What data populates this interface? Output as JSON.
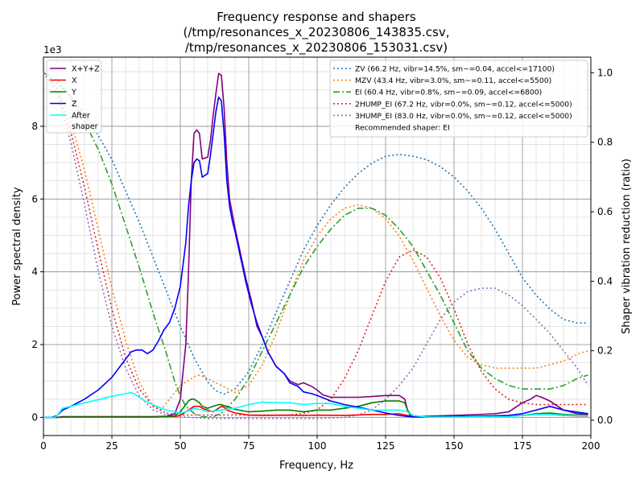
{
  "chart_data": {
    "type": "line",
    "title_lines": [
      "Frequency response and shapers",
      "(/tmp/resonances_x_20230806_143835.csv,",
      "/tmp/resonances_x_20230806_153031.csv)"
    ],
    "xlabel": "Frequency, Hz",
    "ylabel": "Power spectral density",
    "ylabel_right": "Shaper vibration reduction (ratio)",
    "y_offset_label": "1e3",
    "xlim": [
      0,
      200
    ],
    "ylim": [
      -0.5,
      9.9
    ],
    "ylim_right": [
      -0.044,
      1.045
    ],
    "x_ticks": [
      0,
      25,
      50,
      75,
      100,
      125,
      150,
      175,
      200
    ],
    "y_ticks": [
      0,
      2,
      4,
      6,
      8
    ],
    "y_ticks_right": [
      0.0,
      0.2,
      0.4,
      0.6,
      0.8,
      1.0
    ],
    "x_tick_labels": [
      "0",
      "25",
      "50",
      "75",
      "100",
      "125",
      "150",
      "175",
      "200"
    ],
    "y_tick_labels": [
      "0",
      "2",
      "4",
      "6",
      "8"
    ],
    "y_tick_labels_right": [
      "0.0",
      "0.2",
      "0.4",
      "0.6",
      "0.8",
      "1.0"
    ],
    "grid": true,
    "legend_left_placement": "top-left",
    "legend_right_placement": "top-right",
    "psd_series": [
      {
        "name": "X+Y+Z",
        "color": "#800080",
        "x": [
          0,
          5,
          7,
          10,
          20,
          30,
          40,
          45,
          48,
          50,
          52,
          53,
          54,
          55,
          56,
          57,
          58,
          60,
          61,
          62,
          63,
          64,
          65,
          66,
          67,
          68,
          69,
          70,
          72,
          74,
          76,
          78,
          80,
          82,
          85,
          88,
          90,
          93,
          95,
          98,
          100,
          102,
          105,
          110,
          115,
          120,
          125,
          130,
          132,
          133,
          134,
          135,
          140,
          150,
          160,
          165,
          170,
          172,
          175,
          178,
          180,
          182,
          185,
          190,
          195,
          199
        ],
        "y": [
          0,
          0,
          0.02,
          0.02,
          0.02,
          0.02,
          0.02,
          0.03,
          0.1,
          0.5,
          2.0,
          4.0,
          6.5,
          7.8,
          7.9,
          7.8,
          7.1,
          7.15,
          7.6,
          8.3,
          8.9,
          9.45,
          9.4,
          8.5,
          7.0,
          6.0,
          5.6,
          5.2,
          4.5,
          3.8,
          3.2,
          2.5,
          2.2,
          1.8,
          1.4,
          1.2,
          1.0,
          0.9,
          0.95,
          0.85,
          0.75,
          0.62,
          0.55,
          0.55,
          0.55,
          0.57,
          0.6,
          0.6,
          0.5,
          0.2,
          0.05,
          0.02,
          0.03,
          0.05,
          0.08,
          0.1,
          0.15,
          0.25,
          0.4,
          0.5,
          0.6,
          0.55,
          0.45,
          0.2,
          0.1,
          0.08
        ]
      },
      {
        "name": "X",
        "color": "#ff0000",
        "x": [
          0,
          5,
          10,
          20,
          30,
          40,
          45,
          48,
          50,
          52,
          54,
          55,
          56,
          57,
          58,
          60,
          62,
          64,
          65,
          66,
          67,
          70,
          75,
          80,
          90,
          95,
          100,
          110,
          120,
          125,
          130,
          133,
          135,
          140,
          150,
          170,
          175,
          180,
          185,
          190,
          199
        ],
        "y": [
          0,
          0,
          0.01,
          0.01,
          0.01,
          0.01,
          0.02,
          0.02,
          0.05,
          0.15,
          0.25,
          0.3,
          0.3,
          0.3,
          0.25,
          0.2,
          0.15,
          0.25,
          0.3,
          0.28,
          0.2,
          0.12,
          0.06,
          0.05,
          0.06,
          0.05,
          0.06,
          0.05,
          0.08,
          0.08,
          0.1,
          0.05,
          0.02,
          0.02,
          0.02,
          0.03,
          0.05,
          0.08,
          0.08,
          0.05,
          0.03
        ]
      },
      {
        "name": "Y",
        "color": "#008000",
        "x": [
          0,
          5,
          10,
          20,
          30,
          40,
          45,
          48,
          50,
          52,
          53,
          54,
          55,
          56,
          57,
          58,
          60,
          62,
          64,
          65,
          66,
          67,
          70,
          75,
          80,
          85,
          90,
          95,
          100,
          105,
          110,
          115,
          120,
          125,
          130,
          132,
          133,
          134,
          135,
          140,
          150,
          170,
          175,
          180,
          185,
          190,
          199
        ],
        "y": [
          0,
          0,
          0.01,
          0.01,
          0.01,
          0.01,
          0.02,
          0.04,
          0.15,
          0.35,
          0.45,
          0.5,
          0.5,
          0.45,
          0.4,
          0.3,
          0.25,
          0.3,
          0.35,
          0.35,
          0.32,
          0.3,
          0.22,
          0.15,
          0.17,
          0.2,
          0.2,
          0.15,
          0.2,
          0.2,
          0.25,
          0.3,
          0.4,
          0.45,
          0.45,
          0.4,
          0.2,
          0.1,
          0.03,
          0.02,
          0.02,
          0.03,
          0.05,
          0.1,
          0.12,
          0.08,
          0.05
        ]
      },
      {
        "name": "Z",
        "color": "#0000ff",
        "x": [
          0,
          3,
          5,
          7,
          10,
          15,
          20,
          25,
          28,
          30,
          32,
          34,
          36,
          38,
          40,
          42,
          44,
          46,
          48,
          50,
          52,
          53,
          54,
          55,
          56,
          57,
          58,
          60,
          61,
          62,
          63,
          64,
          65,
          66,
          67,
          68,
          69,
          70,
          72,
          74,
          76,
          78,
          80,
          82,
          85,
          88,
          90,
          93,
          95,
          98,
          100,
          105,
          110,
          115,
          120,
          125,
          130,
          135,
          140,
          150,
          160,
          170,
          175,
          180,
          185,
          190,
          199
        ],
        "y": [
          0,
          0,
          0.05,
          0.2,
          0.3,
          0.5,
          0.75,
          1.1,
          1.4,
          1.6,
          1.8,
          1.85,
          1.85,
          1.75,
          1.85,
          2.1,
          2.4,
          2.6,
          3.0,
          3.6,
          4.8,
          5.8,
          6.5,
          7.0,
          7.1,
          7.05,
          6.6,
          6.7,
          7.2,
          7.8,
          8.4,
          8.8,
          8.7,
          7.8,
          6.5,
          5.8,
          5.4,
          5.1,
          4.4,
          3.7,
          3.1,
          2.6,
          2.2,
          1.8,
          1.4,
          1.2,
          0.95,
          0.85,
          0.7,
          0.65,
          0.6,
          0.45,
          0.35,
          0.28,
          0.2,
          0.12,
          0.05,
          0.01,
          0.01,
          0.02,
          0.03,
          0.05,
          0.1,
          0.2,
          0.3,
          0.2,
          0.1
        ]
      },
      {
        "name": "After\nshaper",
        "color": "#00ffff",
        "x": [
          0,
          4,
          5,
          6,
          7,
          10,
          15,
          20,
          25,
          30,
          32,
          33,
          35,
          37,
          40,
          42,
          45,
          48,
          50,
          52,
          55,
          58,
          60,
          65,
          70,
          75,
          80,
          85,
          90,
          95,
          100,
          105,
          110,
          115,
          120,
          125,
          130,
          133,
          135,
          140,
          150,
          170,
          175,
          180,
          185,
          190,
          199
        ],
        "y": [
          0,
          0,
          0.05,
          0.15,
          0.25,
          0.3,
          0.4,
          0.48,
          0.58,
          0.65,
          0.68,
          0.65,
          0.55,
          0.45,
          0.35,
          0.28,
          0.2,
          0.15,
          0.12,
          0.15,
          0.25,
          0.2,
          0.15,
          0.2,
          0.25,
          0.35,
          0.42,
          0.4,
          0.4,
          0.35,
          0.38,
          0.38,
          0.3,
          0.25,
          0.2,
          0.2,
          0.2,
          0.15,
          0.05,
          0.01,
          0.01,
          0.02,
          0.05,
          0.08,
          0.08,
          0.06,
          0.04
        ]
      }
    ],
    "shaper_series": [
      {
        "name": "ZV (66.2 Hz, vibr=14.5%, sm~=0.04, accel<=17100)",
        "color": "#1f77b4",
        "dash": "2,3",
        "x": [
          0,
          5,
          10,
          15,
          20,
          25,
          30,
          35,
          40,
          45,
          50,
          55,
          60,
          63,
          66,
          70,
          75,
          80,
          85,
          90,
          95,
          100,
          105,
          110,
          115,
          120,
          125,
          130,
          135,
          140,
          145,
          150,
          155,
          160,
          165,
          170,
          175,
          180,
          185,
          190,
          195,
          199
        ],
        "y": [
          1.0,
          0.97,
          0.93,
          0.88,
          0.82,
          0.75,
          0.66,
          0.57,
          0.47,
          0.37,
          0.27,
          0.18,
          0.11,
          0.085,
          0.075,
          0.09,
          0.14,
          0.22,
          0.31,
          0.4,
          0.49,
          0.56,
          0.62,
          0.67,
          0.71,
          0.74,
          0.76,
          0.765,
          0.76,
          0.75,
          0.73,
          0.7,
          0.66,
          0.61,
          0.55,
          0.48,
          0.41,
          0.36,
          0.32,
          0.29,
          0.28,
          0.28
        ]
      },
      {
        "name": "MZV (43.4 Hz, vibr=3.0%, sm~=0.11, accel<=5500)",
        "color": "#ff7f0e",
        "dash": "2,3",
        "x": [
          0,
          5,
          10,
          15,
          20,
          25,
          30,
          35,
          40,
          43,
          45,
          50,
          55,
          57,
          60,
          65,
          70,
          75,
          80,
          85,
          90,
          95,
          100,
          105,
          110,
          115,
          120,
          125,
          130,
          135,
          140,
          145,
          150,
          155,
          160,
          165,
          170,
          175,
          180,
          185,
          190,
          195,
          199
        ],
        "y": [
          1.0,
          0.96,
          0.86,
          0.72,
          0.55,
          0.38,
          0.23,
          0.11,
          0.04,
          0.03,
          0.05,
          0.1,
          0.125,
          0.13,
          0.12,
          0.1,
          0.08,
          0.1,
          0.16,
          0.25,
          0.36,
          0.46,
          0.53,
          0.58,
          0.61,
          0.62,
          0.61,
          0.58,
          0.53,
          0.46,
          0.38,
          0.3,
          0.23,
          0.18,
          0.16,
          0.15,
          0.15,
          0.15,
          0.15,
          0.16,
          0.17,
          0.19,
          0.2
        ]
      },
      {
        "name": "EI (60.4 Hz, vibr=0.8%, sm~=0.09, accel<=6800)",
        "color": "#2ca02c",
        "dash": "8,3,2,3",
        "x": [
          0,
          5,
          10,
          15,
          20,
          25,
          30,
          35,
          40,
          45,
          48,
          50,
          52,
          55,
          58,
          60,
          62,
          65,
          70,
          75,
          80,
          85,
          90,
          95,
          100,
          105,
          110,
          115,
          120,
          125,
          130,
          135,
          140,
          145,
          150,
          155,
          160,
          165,
          170,
          175,
          180,
          185,
          190,
          195,
          199
        ],
        "y": [
          1.0,
          0.98,
          0.93,
          0.86,
          0.78,
          0.68,
          0.56,
          0.44,
          0.31,
          0.19,
          0.11,
          0.07,
          0.04,
          0.02,
          0.01,
          0.01,
          0.01,
          0.02,
          0.06,
          0.12,
          0.2,
          0.28,
          0.36,
          0.44,
          0.5,
          0.55,
          0.59,
          0.61,
          0.61,
          0.59,
          0.55,
          0.5,
          0.43,
          0.36,
          0.28,
          0.2,
          0.15,
          0.12,
          0.1,
          0.09,
          0.09,
          0.09,
          0.1,
          0.12,
          0.13
        ]
      },
      {
        "name": "2HUMP_EI (67.2 Hz, vibr=0.0%, sm~=0.12, accel<=5000)",
        "color": "#d62728",
        "dash": "2,3",
        "x": [
          0,
          5,
          10,
          15,
          20,
          25,
          30,
          35,
          40,
          45,
          50,
          55,
          60,
          65,
          70,
          75,
          80,
          85,
          90,
          95,
          100,
          105,
          110,
          115,
          120,
          125,
          130,
          135,
          140,
          145,
          150,
          155,
          160,
          165,
          170,
          175,
          180,
          185,
          190,
          195,
          199
        ],
        "y": [
          1.0,
          0.95,
          0.83,
          0.67,
          0.49,
          0.32,
          0.18,
          0.09,
          0.04,
          0.02,
          0.015,
          0.015,
          0.015,
          0.015,
          0.015,
          0.015,
          0.015,
          0.015,
          0.015,
          0.02,
          0.03,
          0.06,
          0.12,
          0.2,
          0.3,
          0.4,
          0.47,
          0.49,
          0.47,
          0.41,
          0.32,
          0.22,
          0.14,
          0.09,
          0.06,
          0.05,
          0.045,
          0.045,
          0.045,
          0.045,
          0.045
        ]
      },
      {
        "name": "3HUMP_EI (83.0 Hz, vibr=0.0%, sm~=0.12, accel<=5000)",
        "color": "#9467bd",
        "dash": "2,3",
        "x": [
          0,
          5,
          10,
          15,
          20,
          25,
          30,
          35,
          40,
          45,
          50,
          60,
          70,
          80,
          90,
          100,
          110,
          115,
          120,
          125,
          130,
          135,
          140,
          145,
          150,
          155,
          160,
          165,
          170,
          175,
          180,
          185,
          190,
          195,
          199
        ],
        "y": [
          1.0,
          0.94,
          0.8,
          0.62,
          0.43,
          0.27,
          0.15,
          0.07,
          0.03,
          0.015,
          0.01,
          0.005,
          0.005,
          0.005,
          0.005,
          0.005,
          0.008,
          0.015,
          0.03,
          0.06,
          0.1,
          0.15,
          0.22,
          0.29,
          0.34,
          0.37,
          0.38,
          0.38,
          0.36,
          0.33,
          0.29,
          0.25,
          0.2,
          0.15,
          0.1
        ]
      }
    ],
    "annotation": "Recommended shaper: EI"
  }
}
